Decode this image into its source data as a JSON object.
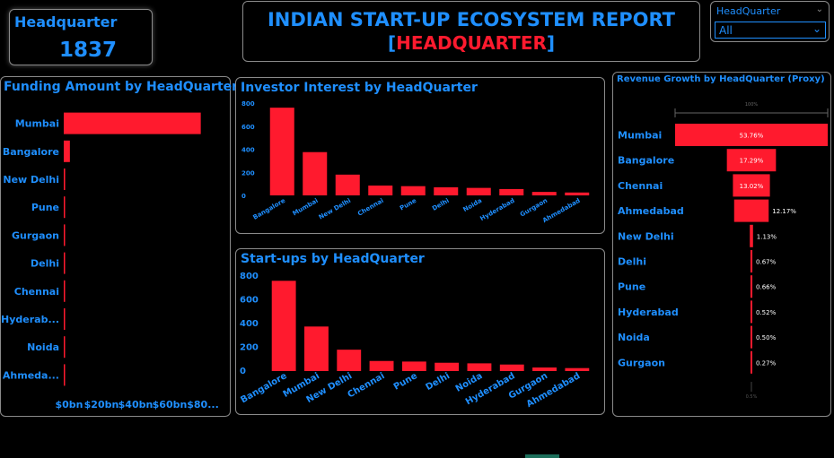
{
  "kpi": {
    "label": "Headquarter",
    "value": "1837"
  },
  "header": {
    "title": "INDIAN START-UP ECOSYSTEM REPORT",
    "bracket_open": "[",
    "subtitle": "HEADQUARTER",
    "bracket_close": "]"
  },
  "slicer": {
    "label": "HeadQuarter",
    "selected": "All"
  },
  "colors": {
    "accent": "#1f8fff",
    "bar": "#ff1a2e"
  },
  "chart_data": [
    {
      "type": "bar",
      "orientation": "horizontal",
      "title": "Funding Amount by HeadQuarter",
      "categories": [
        "Mumbai",
        "Bangalore",
        "New Delhi",
        "Pune",
        "Gurgaon",
        "Delhi",
        "Chennai",
        "Hyderab...",
        "Noida",
        "Ahmeda..."
      ],
      "values": [
        78,
        3.5,
        0.8,
        0.6,
        0.5,
        0.4,
        0.3,
        0.25,
        0.2,
        0.15
      ],
      "xticks": [
        "$0bn",
        "$20bn",
        "$40bn",
        "$60bn",
        "$80..."
      ],
      "xlim": [
        0,
        80
      ]
    },
    {
      "type": "bar",
      "title": "Investor Interest by HeadQuarter",
      "categories": [
        "Bangalore",
        "Mumbai",
        "New Delhi",
        "Chennai",
        "Pune",
        "Delhi",
        "Noida",
        "Hyderabad",
        "Gurgaon",
        "Ahmedabad"
      ],
      "values": [
        760,
        375,
        180,
        85,
        80,
        70,
        65,
        55,
        30,
        25
      ],
      "yticks": [
        "0",
        "200",
        "400",
        "600",
        "800"
      ],
      "ylim": [
        0,
        800
      ]
    },
    {
      "type": "bar",
      "title": "Start-ups by HeadQuarter",
      "categories": [
        "Bangalore",
        "Mumbai",
        "New Delhi",
        "Chennai",
        "Pune",
        "Delhi",
        "Noida",
        "Hyderabad",
        "Gurgaon",
        "Ahmedabad"
      ],
      "values": [
        760,
        375,
        180,
        85,
        80,
        70,
        65,
        55,
        30,
        25
      ],
      "yticks": [
        "0",
        "200",
        "400",
        "600",
        "800"
      ],
      "ylim": [
        0,
        800
      ]
    },
    {
      "type": "funnel",
      "title": "Revenue Growth by HeadQuarter (Proxy)",
      "categories": [
        "Mumbai",
        "Bangalore",
        "Chennai",
        "Ahmedabad",
        "New Delhi",
        "Delhi",
        "Pune",
        "Hyderabad",
        "Noida",
        "Gurgaon"
      ],
      "values": [
        53.76,
        17.29,
        13.02,
        12.17,
        1.13,
        0.67,
        0.66,
        0.52,
        0.5,
        0.27
      ],
      "labels": [
        "53.76%",
        "17.29%",
        "13.02%",
        "12.17%",
        "1.13%",
        "0.67%",
        "0.66%",
        "0.52%",
        "0.50%",
        "0.27%"
      ],
      "top_marker": "100%",
      "bottom_marker": "0.5%"
    }
  ]
}
